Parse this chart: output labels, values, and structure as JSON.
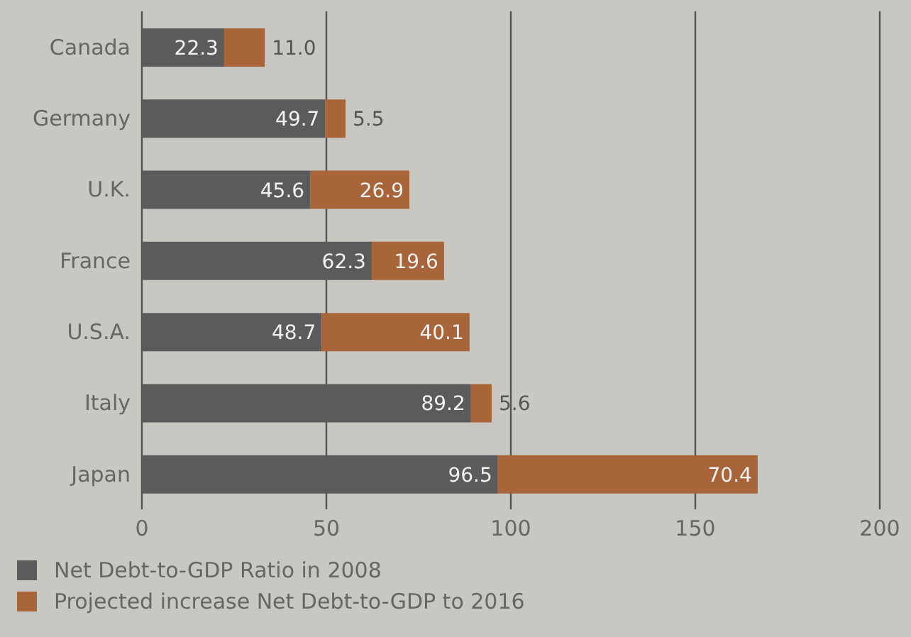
{
  "chart_data": {
    "type": "bar",
    "orientation": "horizontal",
    "stacked": true,
    "categories": [
      "Canada",
      "Germany",
      "U.K.",
      "France",
      "U.S.A.",
      "Italy",
      "Japan"
    ],
    "series": [
      {
        "name": "Net Debt-to-GDP Ratio in 2008",
        "color": "#5b5b5b",
        "values": [
          22.3,
          49.7,
          45.6,
          62.3,
          48.7,
          89.2,
          96.5
        ],
        "value_labels": [
          "22.3",
          "49.7",
          "45.6",
          "62.3",
          "48.7",
          "89.2",
          "96.5"
        ]
      },
      {
        "name": "Projected increase Net Debt-to-GDP to 2016",
        "color": "#a8653a",
        "values": [
          11.0,
          5.5,
          26.9,
          19.6,
          40.1,
          5.6,
          70.4
        ],
        "value_labels": [
          "11.0",
          "5.5",
          "26.9",
          "19.6",
          "40.1",
          "5.6",
          "70.4"
        ]
      }
    ],
    "xlim": [
      0,
      200
    ],
    "xticks": [
      0,
      50,
      100,
      150,
      200
    ],
    "grid": "x",
    "legend": "bottom left"
  }
}
